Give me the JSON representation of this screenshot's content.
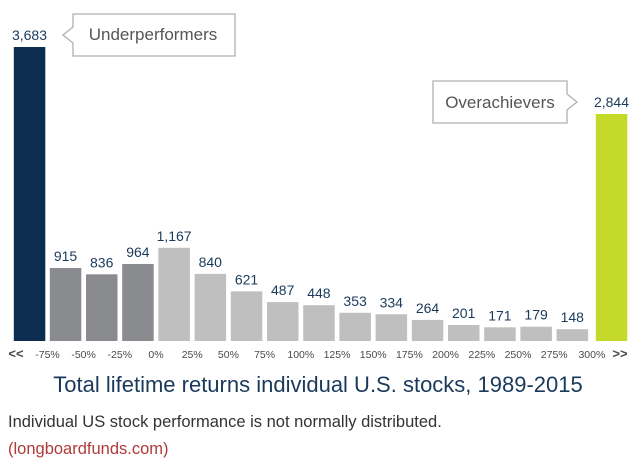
{
  "chart_data": {
    "type": "bar",
    "title": "Total lifetime returns individual U.S. stocks, 1989-2015",
    "x_tick_labels": [
      "<<",
      "-75%",
      "-50%",
      "-25%",
      "0%",
      "25%",
      "50%",
      "75%",
      "100%",
      "125%",
      "150%",
      "175%",
      "200%",
      "225%",
      "250%",
      "275%",
      "300%",
      ">>"
    ],
    "bars": [
      {
        "value": 3683,
        "label": "3,683",
        "color": "#0c2d50"
      },
      {
        "value": 915,
        "label": "915",
        "color": "#8a8b8e"
      },
      {
        "value": 836,
        "label": "836",
        "color": "#8a8b8e"
      },
      {
        "value": 964,
        "label": "964",
        "color": "#8a8b8e"
      },
      {
        "value": 1167,
        "label": "1,167",
        "color": "#bfbfbf"
      },
      {
        "value": 840,
        "label": "840",
        "color": "#bfbfbf"
      },
      {
        "value": 621,
        "label": "621",
        "color": "#bfbfbf"
      },
      {
        "value": 487,
        "label": "487",
        "color": "#bfbfbf"
      },
      {
        "value": 448,
        "label": "448",
        "color": "#bfbfbf"
      },
      {
        "value": 353,
        "label": "353",
        "color": "#bfbfbf"
      },
      {
        "value": 334,
        "label": "334",
        "color": "#bfbfbf"
      },
      {
        "value": 264,
        "label": "264",
        "color": "#bfbfbf"
      },
      {
        "value": 201,
        "label": "201",
        "color": "#bfbfbf"
      },
      {
        "value": 171,
        "label": "171",
        "color": "#bfbfbf"
      },
      {
        "value": 179,
        "label": "179",
        "color": "#bfbfbf"
      },
      {
        "value": 148,
        "label": "148",
        "color": "#bfbfbf"
      },
      {
        "value": 2844,
        "label": "2,844",
        "color": "#c5d92a"
      }
    ],
    "annotations": {
      "left": "Underperformers",
      "right": "Overachievers"
    },
    "label_color": "#1a3a5c",
    "tick_color": "#4a4a4a"
  },
  "caption": "Individual US stock performance is not normally distributed.",
  "source": "(longboardfunds.com)"
}
